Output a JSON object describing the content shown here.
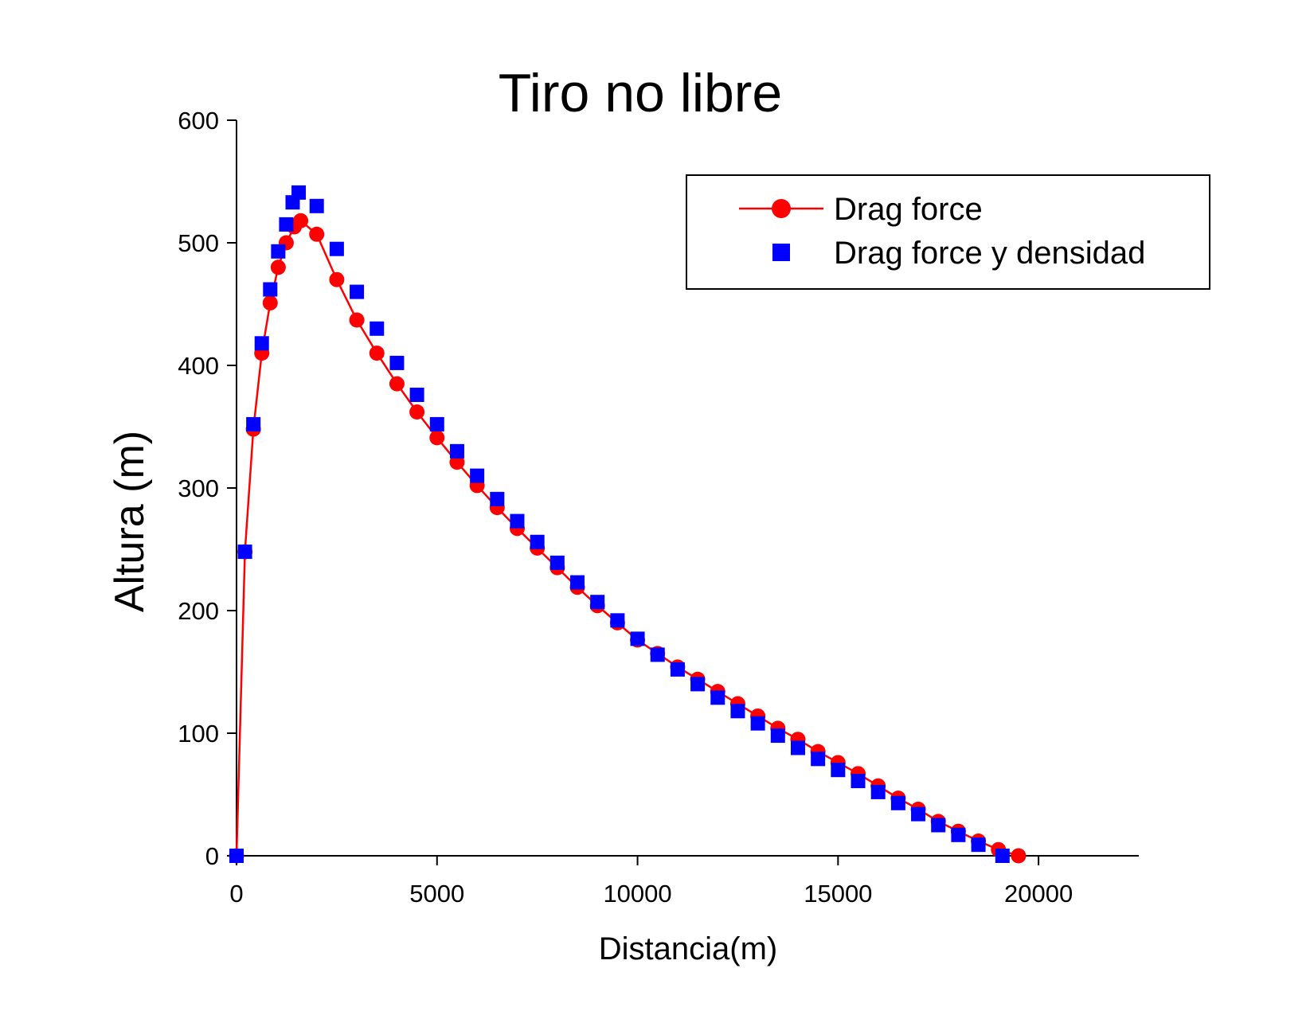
{
  "chart_data": {
    "type": "line",
    "title": "Tiro no libre",
    "x_label": "Distancia(m)",
    "y_label": "Altura  (m)",
    "xlim": [
      0,
      22500
    ],
    "xticks": [
      0,
      5000,
      10000,
      15000,
      20000
    ],
    "ylim": [
      0,
      600
    ],
    "yticks": [
      0,
      100,
      200,
      300,
      400,
      500,
      600
    ],
    "legend": "top-right",
    "series": [
      {
        "name": "Drag force",
        "color": "#ff0000",
        "marker": "circle",
        "line": true,
        "x": [
          0,
          210,
          420,
          630,
          840,
          1040,
          1240,
          1440,
          1600,
          2000,
          2500,
          3000,
          3500,
          4000,
          4500,
          5000,
          5500,
          6000,
          6500,
          7000,
          7500,
          8000,
          8500,
          9000,
          9500,
          10000,
          10500,
          11000,
          11500,
          12000,
          12500,
          13000,
          13500,
          14000,
          14500,
          15000,
          15500,
          16000,
          16500,
          17000,
          17500,
          18000,
          18500,
          19000,
          19500
        ],
        "values": [
          0,
          248,
          348,
          410,
          451,
          480,
          500,
          513,
          518,
          507,
          470,
          437,
          410,
          385,
          362,
          341,
          321,
          302,
          284,
          267,
          251,
          235,
          219,
          204,
          190,
          176,
          165,
          154,
          144,
          134,
          124,
          114,
          104,
          95,
          85,
          76,
          67,
          57,
          47,
          38,
          28,
          20,
          12,
          5,
          0
        ]
      },
      {
        "name": "Drag force y densidad",
        "color": "#0000ff",
        "marker": "square",
        "line": false,
        "x": [
          0,
          210,
          420,
          630,
          840,
          1040,
          1240,
          1400,
          1550,
          2000,
          2500,
          3000,
          3500,
          4000,
          4500,
          5000,
          5500,
          6000,
          6500,
          7000,
          7500,
          8000,
          8500,
          9000,
          9500,
          10000,
          10500,
          11000,
          11500,
          12000,
          12500,
          13000,
          13500,
          14000,
          14500,
          15000,
          15500,
          16000,
          16500,
          17000,
          17500,
          18000,
          18500,
          19100
        ],
        "values": [
          0,
          248,
          352,
          418,
          462,
          493,
          515,
          533,
          541,
          530,
          495,
          460,
          430,
          402,
          376,
          352,
          330,
          310,
          291,
          273,
          256,
          239,
          223,
          207,
          192,
          177,
          164,
          152,
          140,
          129,
          118,
          108,
          98,
          88,
          79,
          70,
          61,
          52,
          43,
          34,
          25,
          17,
          9,
          0
        ]
      }
    ]
  }
}
